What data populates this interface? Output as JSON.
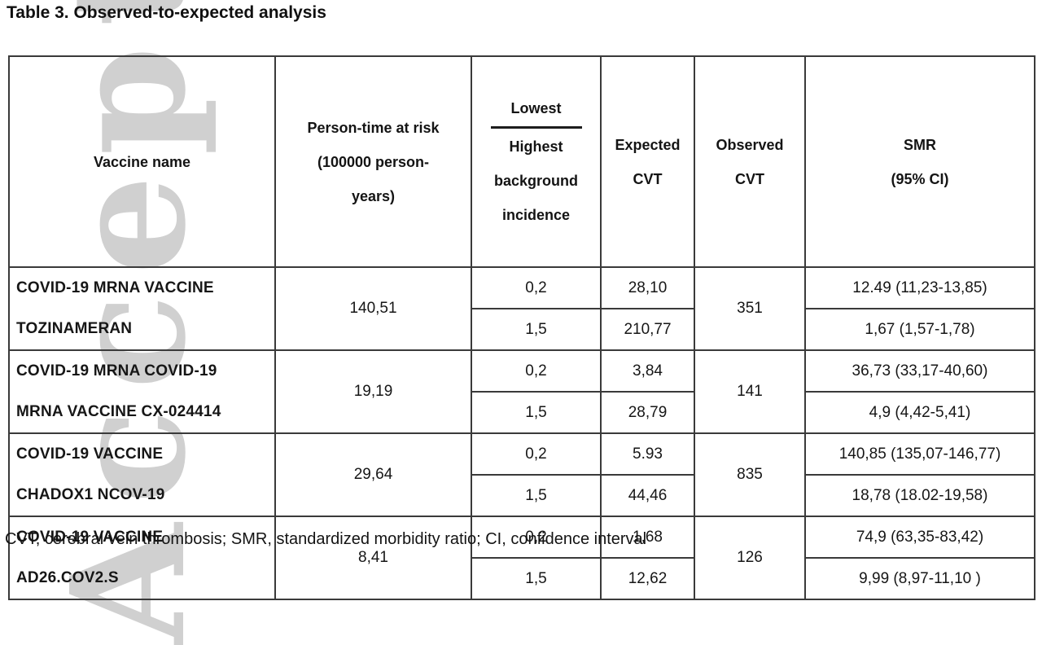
{
  "page": {
    "title": "Table 3. Observed-to-expected analysis",
    "footnote": "CVT, cerebral vein thrombosis; SMR, standardized morbidity ratio; CI, confidence interval",
    "watermark_text": "Accepted Article"
  },
  "table": {
    "headers": {
      "vaccine": "Vaccine name",
      "person_time": [
        "Person-time at risk",
        "(100000 person-",
        "years)"
      ],
      "incidence_numerator": "Lowest",
      "incidence_denominator": [
        "Highest",
        "background",
        "incidence"
      ],
      "expected": [
        "Expected",
        "CVT"
      ],
      "observed": [
        "Observed",
        "CVT"
      ],
      "smr": [
        "SMR",
        "(95% CI)"
      ]
    },
    "rows": [
      {
        "vaccine_lines": [
          "COVID-19 MRNA VACCINE",
          "TOZINAMERAN"
        ],
        "person_time": "140,51",
        "observed": "351",
        "sub_rows": [
          {
            "incidence": "0,2",
            "expected_cvt": "28,10",
            "smr": "12.49 (11,23-13,85)"
          },
          {
            "incidence": "1,5",
            "expected_cvt": "210,77",
            "smr": "1,67 (1,57-1,78)"
          }
        ]
      },
      {
        "vaccine_lines": [
          "COVID-19 MRNA COVID-19",
          "MRNA VACCINE CX-024414"
        ],
        "person_time": "19,19",
        "observed": "141",
        "sub_rows": [
          {
            "incidence": "0,2",
            "expected_cvt": "3,84",
            "smr": "36,73 (33,17-40,60)"
          },
          {
            "incidence": "1,5",
            "expected_cvt": "28,79",
            "smr": "4,9 (4,42-5,41)"
          }
        ]
      },
      {
        "vaccine_lines": [
          "COVID-19 VACCINE",
          "CHADOX1 NCOV-19"
        ],
        "person_time": "29,64",
        "observed": "835",
        "sub_rows": [
          {
            "incidence": "0,2",
            "expected_cvt": "5.93",
            "smr": "140,85 (135,07-146,77)"
          },
          {
            "incidence": "1,5",
            "expected_cvt": "44,46",
            "smr": "18,78 (18.02-19,58)"
          }
        ]
      },
      {
        "vaccine_lines": [
          "COVID-19 VACCINE",
          "AD26.COV2.S"
        ],
        "person_time": "8,41",
        "observed": "126",
        "sub_rows": [
          {
            "incidence": "0,2",
            "expected_cvt": "1,68",
            "smr": "74,9 (63,35-83,42)"
          },
          {
            "incidence": "1,5",
            "expected_cvt": "12,62",
            "smr": "9,99 (8,97-11,10 )"
          }
        ]
      }
    ]
  }
}
